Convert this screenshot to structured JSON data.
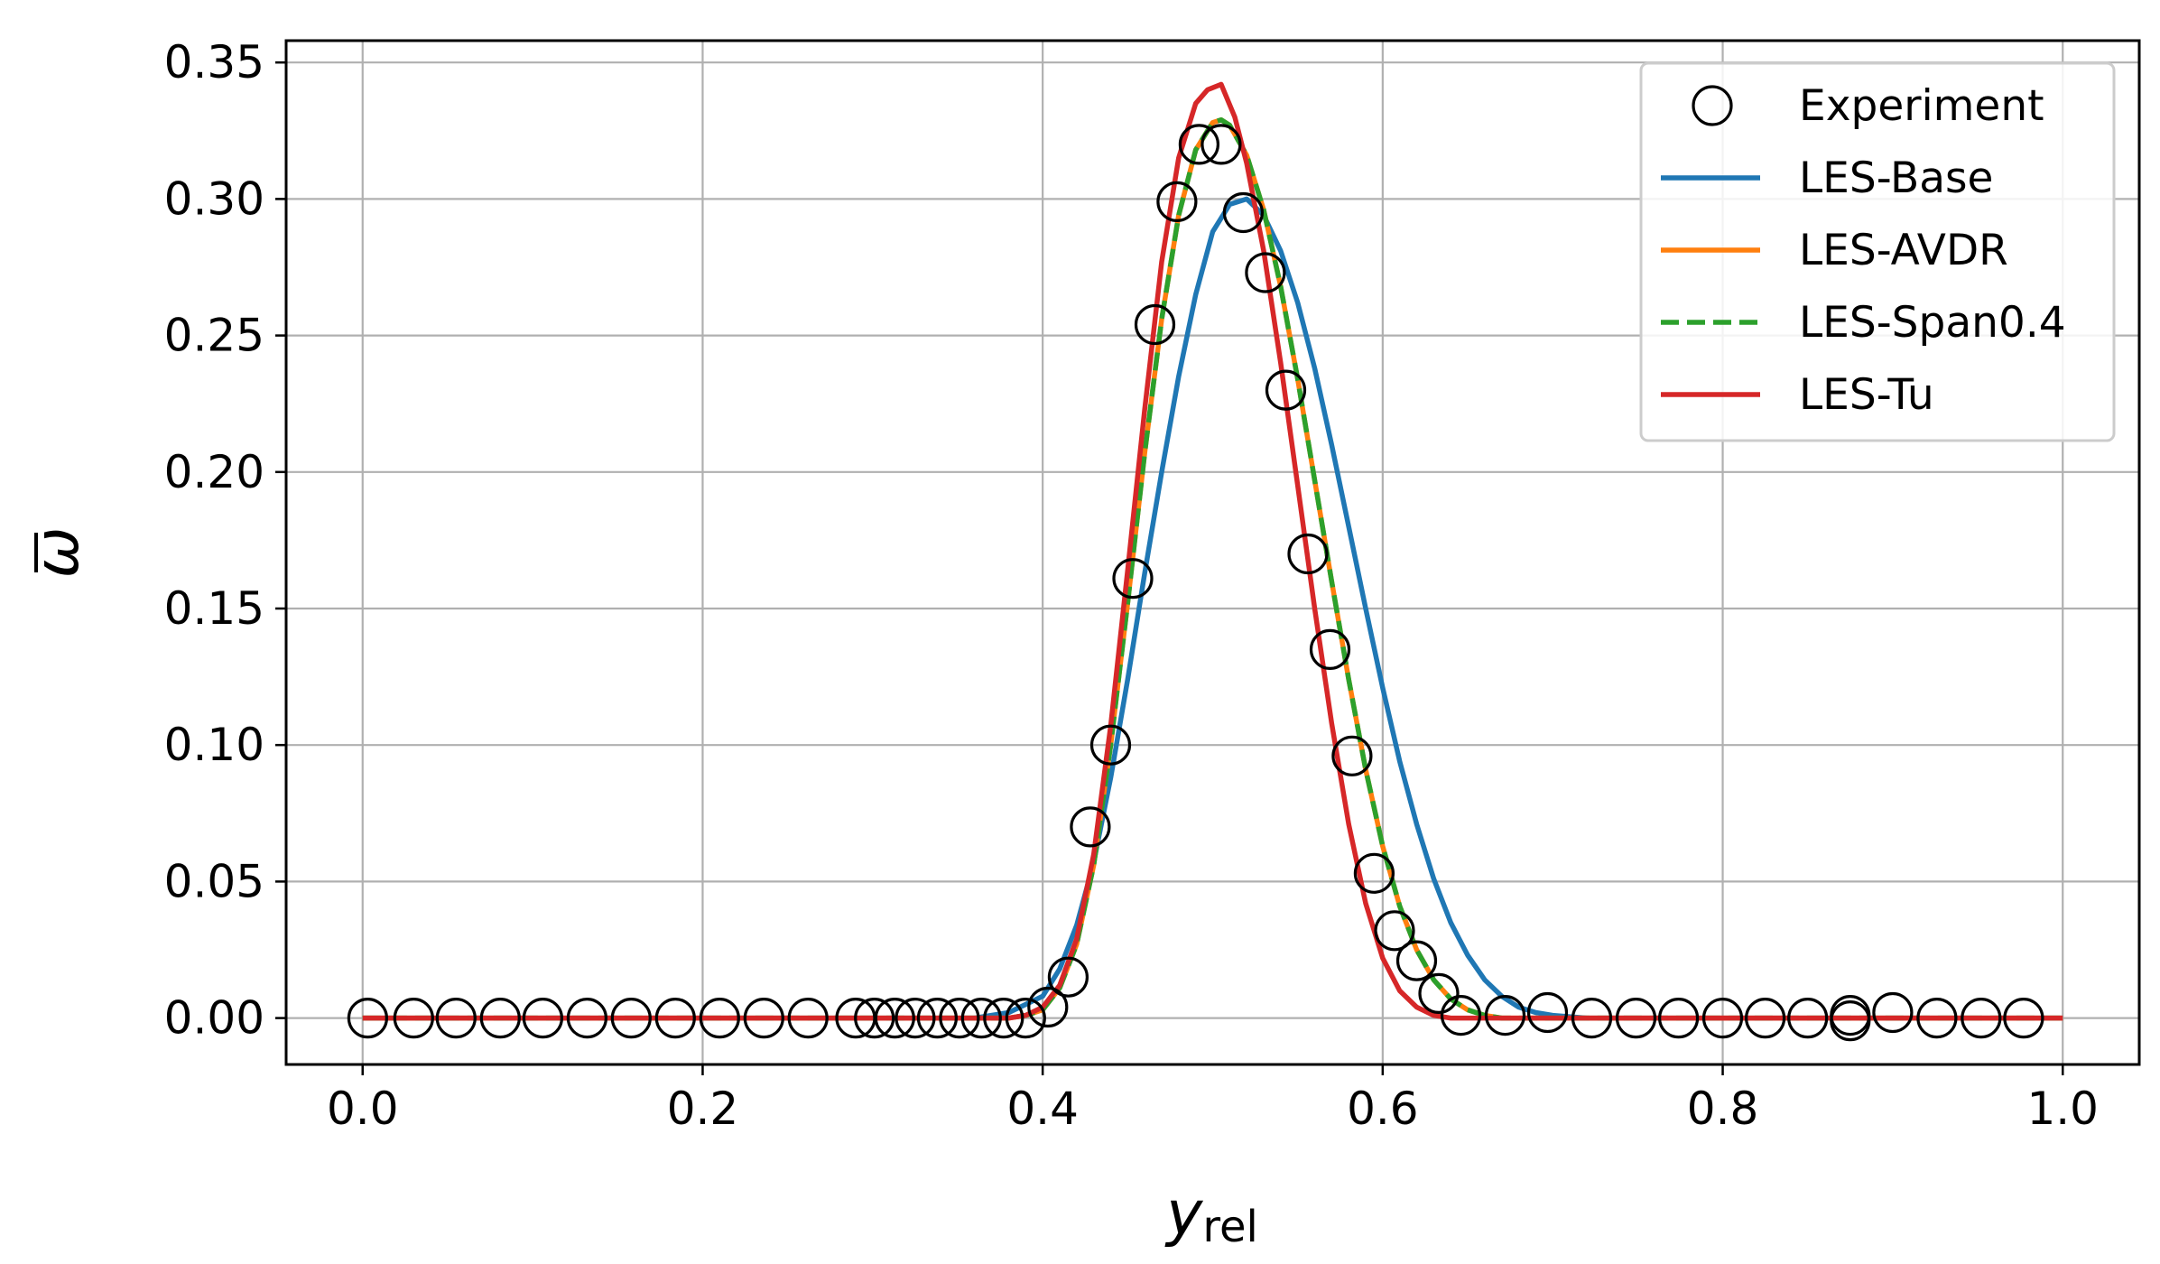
{
  "chart_data": {
    "type": "line",
    "title": "",
    "xlabel": {
      "main": "y",
      "sub": "rel"
    },
    "ylabel": "ω",
    "xlim": [
      -0.045,
      1.045
    ],
    "ylim": [
      -0.017,
      0.358
    ],
    "x_ticks": [
      0.0,
      0.2,
      0.4,
      0.6,
      0.8,
      1.0
    ],
    "x_tick_labels": [
      "0.0",
      "0.2",
      "0.4",
      "0.6",
      "0.8",
      "1.0"
    ],
    "y_ticks": [
      0.0,
      0.05,
      0.1,
      0.15,
      0.2,
      0.25,
      0.3,
      0.35
    ],
    "y_tick_labels": [
      "0.00",
      "0.05",
      "0.10",
      "0.15",
      "0.20",
      "0.25",
      "0.30",
      "0.35"
    ],
    "grid": true,
    "legend_position": "top-right",
    "series": [
      {
        "name": "Experiment",
        "kind": "markers",
        "marker": "open-circle",
        "color": "#000000",
        "x": [
          0.003,
          0.03,
          0.055,
          0.081,
          0.106,
          0.132,
          0.158,
          0.184,
          0.21,
          0.236,
          0.262,
          0.29,
          0.301,
          0.313,
          0.325,
          0.338,
          0.351,
          0.364,
          0.377,
          0.39,
          0.403,
          0.415,
          0.428,
          0.44,
          0.453,
          0.466,
          0.479,
          0.492,
          0.505,
          0.518,
          0.531,
          0.543,
          0.556,
          0.569,
          0.582,
          0.595,
          0.607,
          0.62,
          0.633,
          0.646,
          0.672,
          0.697,
          0.723,
          0.749,
          0.774,
          0.8,
          0.825,
          0.85,
          0.875,
          0.875,
          0.9,
          0.926,
          0.952,
          0.977
        ],
        "y": [
          0.0,
          0.0,
          0.0,
          0.0,
          0.0,
          0.0,
          0.0,
          0.0,
          0.0,
          0.0,
          0.0,
          0.0,
          0.0,
          0.0,
          0.0,
          0.0,
          0.0,
          0.0,
          0.0,
          0.0,
          0.004,
          0.015,
          0.07,
          0.1,
          0.161,
          0.254,
          0.299,
          0.32,
          0.32,
          0.295,
          0.273,
          0.23,
          0.17,
          0.135,
          0.096,
          0.053,
          0.032,
          0.021,
          0.009,
          0.001,
          0.001,
          0.002,
          0.0,
          0.0,
          0.0,
          0.0,
          0.0,
          0.0,
          0.001,
          -0.001,
          0.002,
          0.0,
          0.0,
          0.0
        ]
      },
      {
        "name": "LES-Base",
        "kind": "line",
        "color": "#1f77b4",
        "dash": "solid",
        "x": [
          0.0,
          0.36,
          0.38,
          0.4,
          0.41,
          0.42,
          0.43,
          0.44,
          0.45,
          0.46,
          0.47,
          0.48,
          0.49,
          0.5,
          0.51,
          0.52,
          0.53,
          0.54,
          0.55,
          0.56,
          0.57,
          0.58,
          0.59,
          0.6,
          0.61,
          0.62,
          0.63,
          0.64,
          0.65,
          0.66,
          0.67,
          0.68,
          0.69,
          0.7,
          0.72,
          0.75,
          1.0
        ],
        "y": [
          0.0,
          0.0,
          0.002,
          0.008,
          0.018,
          0.034,
          0.057,
          0.088,
          0.124,
          0.163,
          0.2,
          0.235,
          0.265,
          0.288,
          0.298,
          0.3,
          0.294,
          0.281,
          0.262,
          0.238,
          0.21,
          0.18,
          0.15,
          0.121,
          0.094,
          0.071,
          0.051,
          0.035,
          0.023,
          0.014,
          0.008,
          0.004,
          0.002,
          0.001,
          0.0,
          0.0,
          0.0
        ]
      },
      {
        "name": "LES-AVDR",
        "kind": "line",
        "color": "#ff7f0e",
        "dash": "solid",
        "x": [
          0.0,
          0.38,
          0.39,
          0.4,
          0.41,
          0.42,
          0.43,
          0.44,
          0.45,
          0.46,
          0.47,
          0.48,
          0.49,
          0.5,
          0.505,
          0.51,
          0.52,
          0.53,
          0.54,
          0.55,
          0.56,
          0.57,
          0.58,
          0.59,
          0.6,
          0.61,
          0.62,
          0.63,
          0.64,
          0.65,
          0.66,
          0.67,
          0.68,
          0.7,
          0.75,
          1.0
        ],
        "y": [
          0.0,
          0.0,
          0.001,
          0.003,
          0.011,
          0.027,
          0.056,
          0.1,
          0.152,
          0.207,
          0.256,
          0.294,
          0.318,
          0.328,
          0.329,
          0.327,
          0.316,
          0.296,
          0.268,
          0.234,
          0.197,
          0.16,
          0.124,
          0.091,
          0.063,
          0.041,
          0.025,
          0.014,
          0.007,
          0.003,
          0.001,
          0.0,
          0.0,
          0.0,
          0.0,
          0.0
        ]
      },
      {
        "name": "LES-Span0.4",
        "kind": "line",
        "color": "#2ca02c",
        "dash": "dashed",
        "x": [
          0.0,
          0.38,
          0.39,
          0.4,
          0.41,
          0.42,
          0.43,
          0.44,
          0.45,
          0.46,
          0.47,
          0.48,
          0.49,
          0.5,
          0.505,
          0.51,
          0.52,
          0.53,
          0.54,
          0.55,
          0.56,
          0.57,
          0.58,
          0.59,
          0.6,
          0.61,
          0.62,
          0.63,
          0.64,
          0.65,
          0.66,
          0.67,
          0.68,
          0.7,
          0.75,
          1.0
        ],
        "y": [
          0.0,
          0.0,
          0.001,
          0.003,
          0.011,
          0.027,
          0.056,
          0.1,
          0.152,
          0.207,
          0.256,
          0.294,
          0.318,
          0.328,
          0.329,
          0.327,
          0.316,
          0.296,
          0.268,
          0.234,
          0.197,
          0.16,
          0.124,
          0.091,
          0.063,
          0.041,
          0.025,
          0.014,
          0.007,
          0.003,
          0.001,
          0.0,
          0.0,
          0.0,
          0.0,
          0.0
        ]
      },
      {
        "name": "LES-Tu",
        "kind": "line",
        "color": "#d62728",
        "dash": "solid",
        "x": [
          0.0,
          0.38,
          0.39,
          0.4,
          0.41,
          0.42,
          0.43,
          0.44,
          0.45,
          0.46,
          0.47,
          0.48,
          0.49,
          0.497,
          0.505,
          0.513,
          0.52,
          0.53,
          0.54,
          0.55,
          0.56,
          0.57,
          0.58,
          0.59,
          0.6,
          0.61,
          0.62,
          0.63,
          0.64,
          0.65,
          0.66,
          0.7,
          1.0
        ],
        "y": [
          0.0,
          0.0,
          0.001,
          0.004,
          0.012,
          0.029,
          0.06,
          0.107,
          0.164,
          0.223,
          0.277,
          0.315,
          0.335,
          0.34,
          0.342,
          0.33,
          0.313,
          0.281,
          0.24,
          0.195,
          0.15,
          0.108,
          0.071,
          0.042,
          0.022,
          0.01,
          0.004,
          0.001,
          0.0,
          0.0,
          0.0,
          0.0,
          0.0
        ]
      }
    ]
  }
}
